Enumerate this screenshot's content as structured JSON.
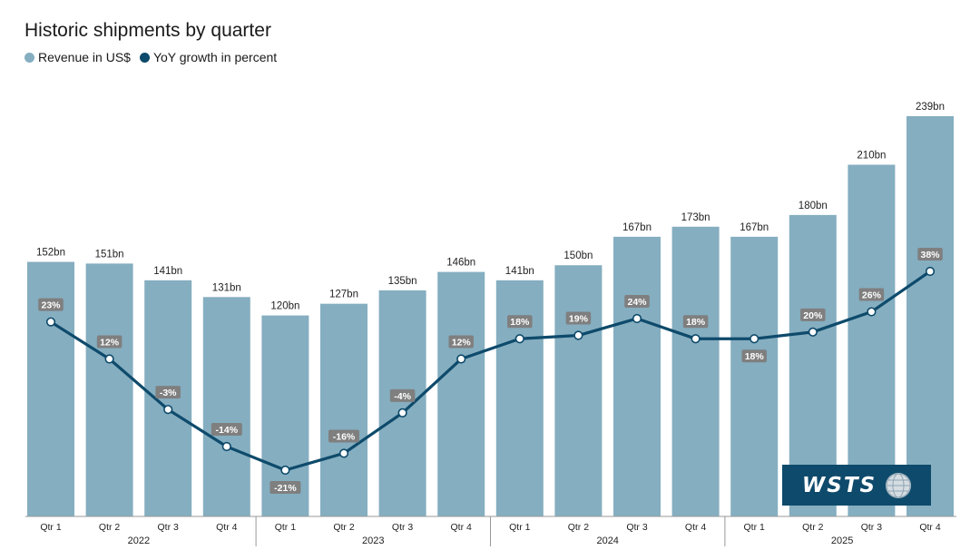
{
  "title": "Historic shipments by quarter",
  "legend": [
    {
      "label": "Revenue  in US$",
      "color": "#85aec0"
    },
    {
      "label": "YoY growth in percent",
      "color": "#0e4a6b"
    }
  ],
  "logo": {
    "text": "WSTS"
  },
  "colors": {
    "bar": "#85aec0",
    "line": "#0e4a6b",
    "label_bg": "#7f7f7f"
  },
  "chart_data": {
    "type": "bar",
    "categories": [
      "Qtr 1",
      "Qtr 2",
      "Qtr 3",
      "Qtr 4",
      "Qtr 1",
      "Qtr 2",
      "Qtr 3",
      "Qtr 4",
      "Qtr 1",
      "Qtr 2",
      "Qtr 3",
      "Qtr 4",
      "Qtr 1",
      "Qtr 2",
      "Qtr 3",
      "Qtr 4"
    ],
    "years": [
      "2022",
      "2023",
      "2024",
      "2025"
    ],
    "series": [
      {
        "name": "Revenue  in US$",
        "type": "bar",
        "values": [
          152,
          151,
          141,
          131,
          120,
          127,
          135,
          146,
          141,
          150,
          167,
          173,
          167,
          180,
          210,
          239
        ],
        "labels": [
          "152bn",
          "151bn",
          "141bn",
          "131bn",
          "120bn",
          "127bn",
          "135bn",
          "146bn",
          "141bn",
          "150bn",
          "167bn",
          "173bn",
          "167bn",
          "180bn",
          "210bn",
          "239bn"
        ]
      },
      {
        "name": "YoY growth in percent",
        "type": "line",
        "values": [
          23,
          12,
          -3,
          -14,
          -21,
          -16,
          -4,
          12,
          18,
          19,
          24,
          18,
          18,
          20,
          26,
          38
        ],
        "labels": [
          "23%",
          "12%",
          "-3%",
          "-14%",
          "-21%",
          "-16%",
          "-4%",
          "12%",
          "18%",
          "19%",
          "24%",
          "18%",
          "18%",
          "20%",
          "26%",
          "38%"
        ]
      }
    ],
    "ylim_revenue": [
      0,
      239
    ],
    "ylim_growth": [
      -21,
      38
    ]
  }
}
